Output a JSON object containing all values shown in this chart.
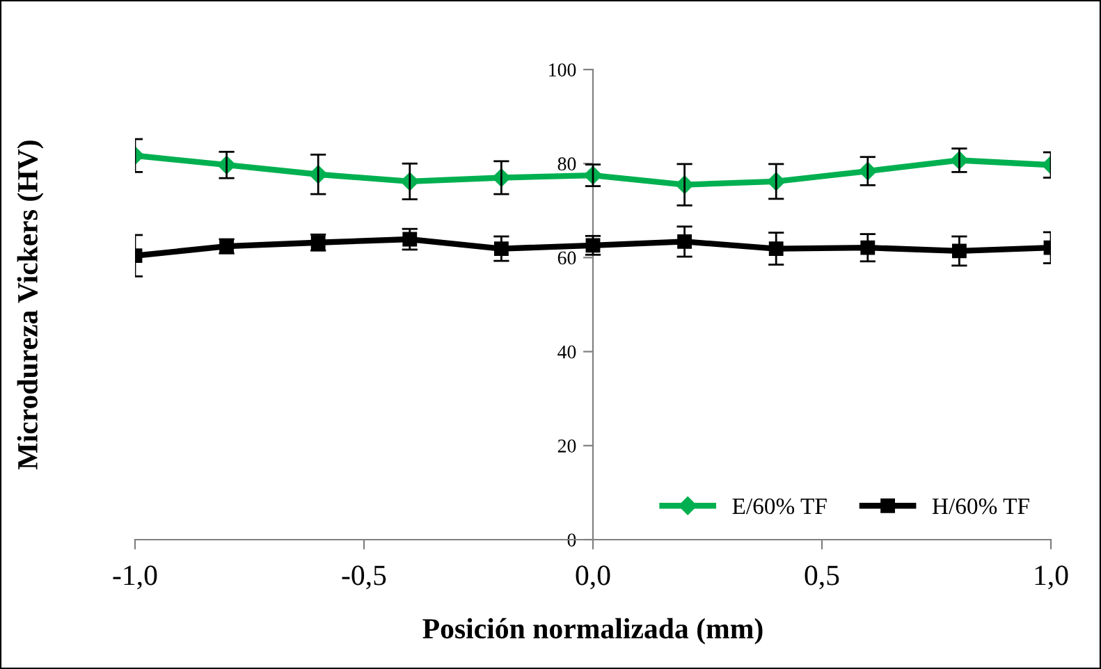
{
  "chart_data": {
    "type": "line",
    "xlabel": "Posición normalizada (mm)",
    "ylabel": "Microdureza Vickers (HV)",
    "x": [
      -1.0,
      -0.8,
      -0.6,
      -0.4,
      -0.2,
      0.0,
      0.2,
      0.4,
      0.6,
      0.8,
      1.0
    ],
    "series": [
      {
        "name": "E/60% TF",
        "color": "#00b050",
        "marker": "diamond",
        "values": [
          81.7,
          79.7,
          77.7,
          76.2,
          77.0,
          77.5,
          75.5,
          76.2,
          78.4,
          80.7,
          79.7
        ],
        "errors": [
          3.5,
          2.8,
          4.2,
          3.8,
          3.5,
          2.3,
          4.4,
          3.7,
          3.0,
          2.5,
          2.7
        ]
      },
      {
        "name": "H/60% TF",
        "color": "#000000",
        "marker": "square",
        "values": [
          60.4,
          62.4,
          63.2,
          63.9,
          61.9,
          62.6,
          63.4,
          61.9,
          62.1,
          61.4,
          62.1
        ],
        "errors": [
          4.4,
          1.5,
          1.7,
          2.2,
          2.6,
          2.0,
          3.2,
          3.4,
          2.9,
          3.1,
          3.3
        ]
      }
    ],
    "xlim": [
      -1.0,
      1.0
    ],
    "ylim": [
      0,
      100
    ],
    "xticks": [
      {
        "value": -1.0,
        "label": "-1,0"
      },
      {
        "value": -0.5,
        "label": "-0,5"
      },
      {
        "value": 0.0,
        "label": "0,0"
      },
      {
        "value": 0.5,
        "label": "0,5"
      },
      {
        "value": 1.0,
        "label": "1,0"
      }
    ],
    "yticks": [
      0,
      20,
      40,
      60,
      80,
      100
    ],
    "grid": false,
    "legend": "bottom right",
    "line_style": "solid"
  }
}
